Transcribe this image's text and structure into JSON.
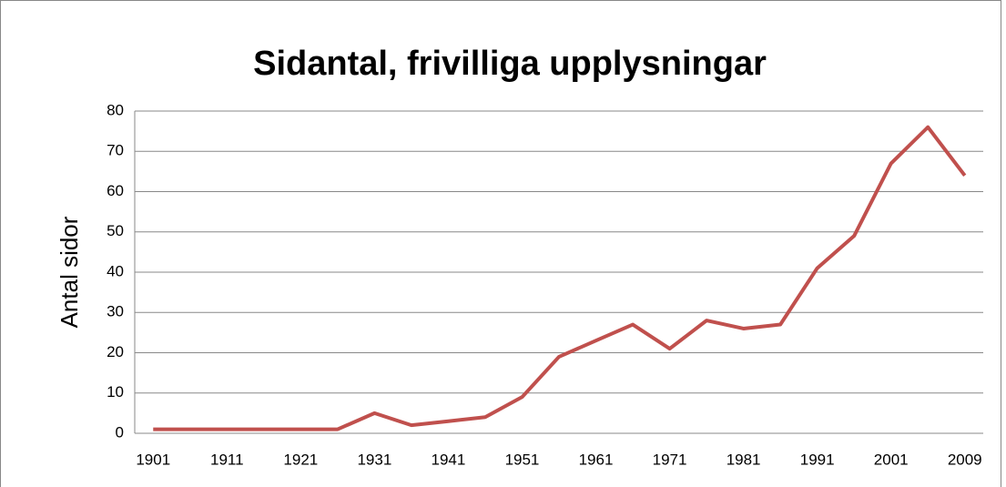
{
  "chart_data": {
    "type": "line",
    "title": "Sidantal, frivilliga upplysningar",
    "ylabel": "Antal sidor",
    "categories": [
      "1901",
      null,
      "1911",
      null,
      "1921",
      null,
      "1931",
      null,
      "1941",
      null,
      "1951",
      null,
      "1961",
      null,
      "1971",
      null,
      "1981",
      null,
      "1991",
      null,
      "2001",
      null,
      "2009"
    ],
    "series": [
      {
        "name": "Antal sidor",
        "color": "#c0504d",
        "values": [
          1,
          1,
          1,
          1,
          1,
          1,
          5,
          2,
          3,
          4,
          9,
          19,
          23,
          27,
          21,
          28,
          26,
          27,
          41,
          49,
          67,
          76,
          64
        ]
      }
    ],
    "ylim": [
      0,
      80
    ],
    "yticks": [
      0,
      10,
      20,
      30,
      40,
      50,
      60,
      70,
      80
    ],
    "grid": true
  }
}
